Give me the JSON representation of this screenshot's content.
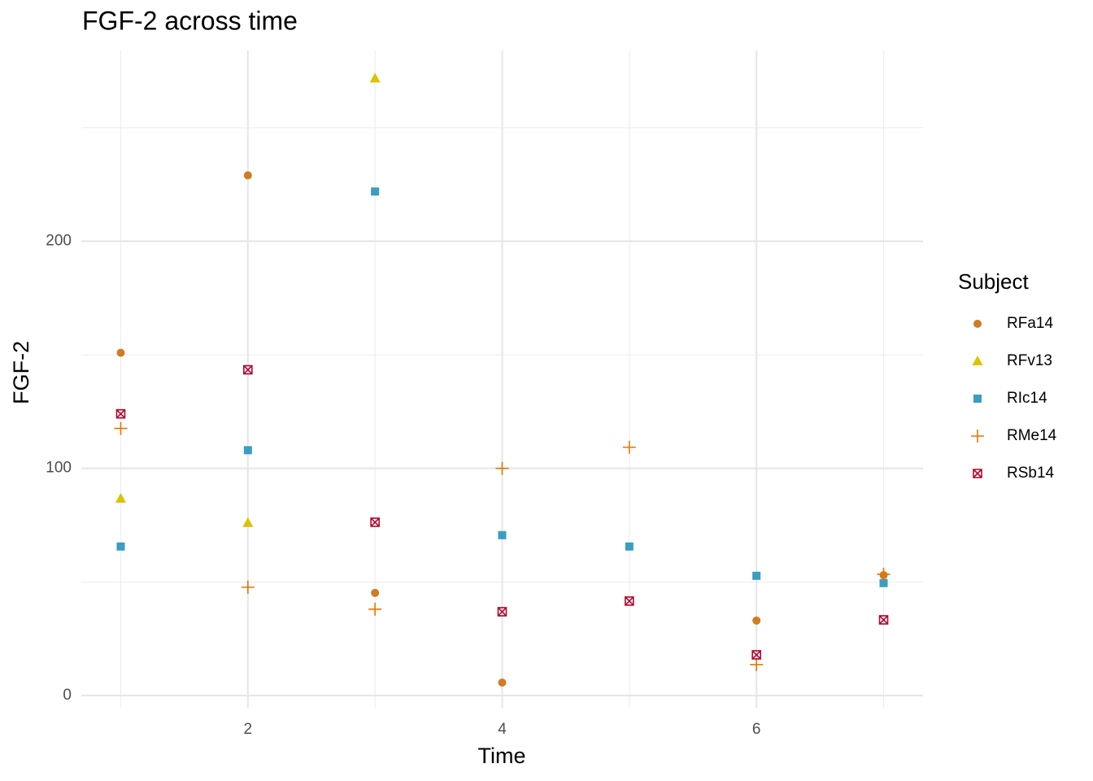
{
  "chart_data": {
    "type": "scatter",
    "title": "FGF-2 across time",
    "x_label": "Time",
    "y_label": "FGF-2",
    "legend_title": "Subject",
    "legend_position": "right",
    "x": [
      1,
      2,
      3,
      4,
      5,
      6,
      7
    ],
    "series": [
      {
        "name": "RFa14",
        "color": "#d07c22",
        "shape": "circle",
        "values": [
          150.9,
          229,
          45.2,
          5.7,
          null,
          33,
          53
        ]
      },
      {
        "name": "RFv13",
        "color": "#dcc300",
        "shape": "triangle",
        "values": [
          86.7,
          76,
          271.7,
          null,
          null,
          null,
          null
        ]
      },
      {
        "name": "RIc14",
        "color": "#3a9dc2",
        "shape": "square",
        "values": [
          65.6,
          108,
          221.9,
          70.6,
          65.6,
          52.7,
          49.5
        ]
      },
      {
        "name": "RMe14",
        "color": "#e27602",
        "shape": "plus",
        "values": [
          117.6,
          47.7,
          38,
          100,
          109.3,
          13.6,
          53.4
        ]
      },
      {
        "name": "RSb14",
        "color": "#b3072c",
        "shape": "boxcross",
        "values": [
          124,
          143.4,
          76.3,
          36.9,
          41.6,
          17.9,
          33.3
        ]
      }
    ],
    "xlim": [
      0.69,
      7.31
    ],
    "ylim": [
      -5.4,
      284
    ],
    "xticks": [
      2,
      4,
      6
    ],
    "yticks": [
      0,
      100,
      200
    ],
    "xminor": [
      1,
      3,
      5,
      7
    ],
    "yminor": [
      50,
      150,
      250
    ],
    "grid": true
  }
}
